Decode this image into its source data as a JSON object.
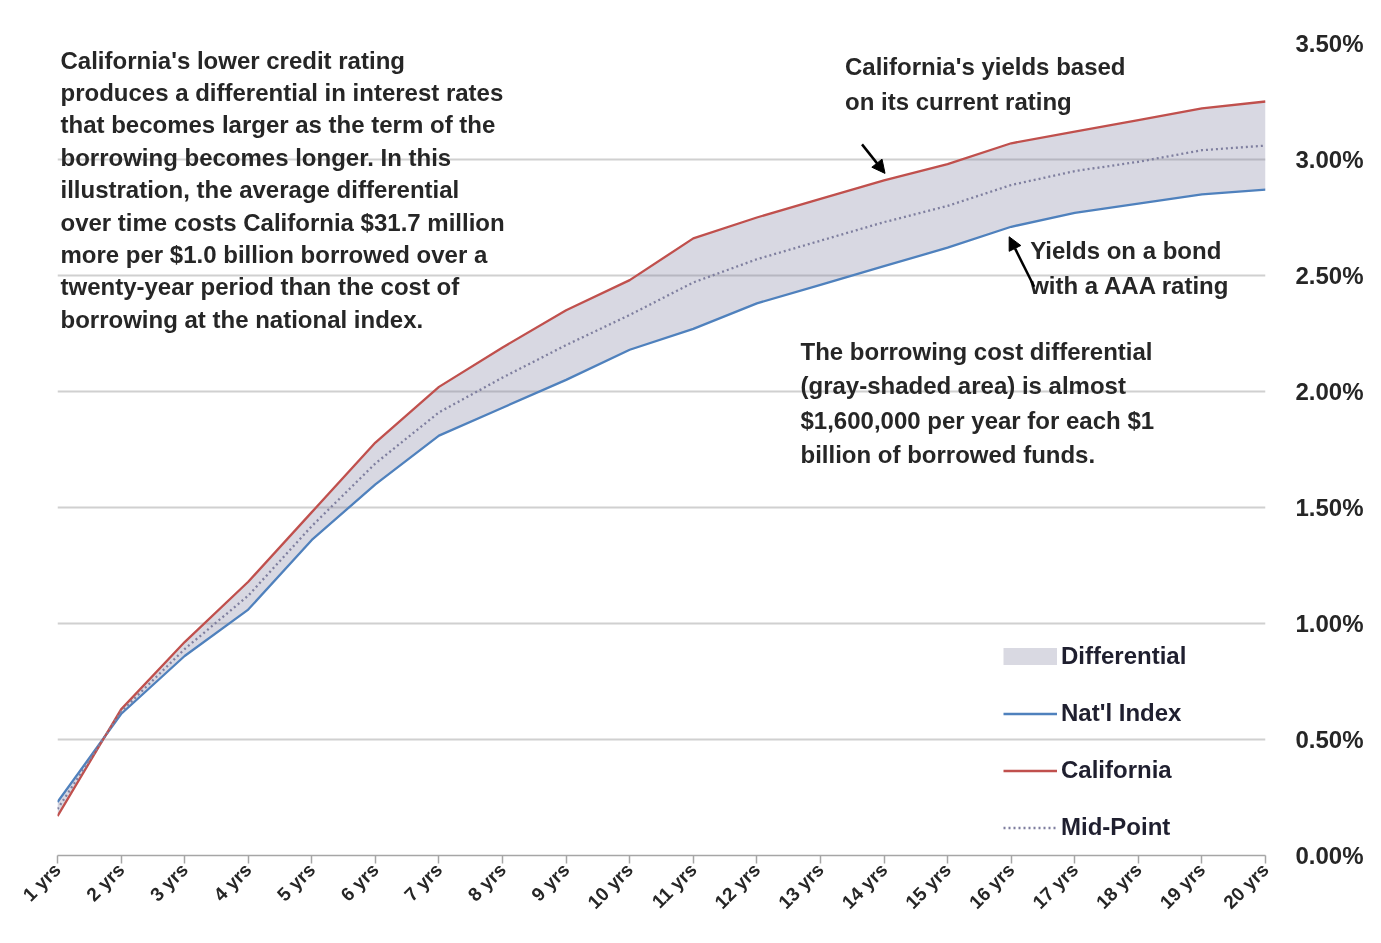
{
  "chart_data": {
    "type": "line",
    "categories": [
      "1 yrs",
      "2 yrs",
      "3 yrs",
      "4 yrs",
      "5 yrs",
      "6 yrs",
      "7 yrs",
      "8 yrs",
      "9 yrs",
      "10 yrs",
      "11 yrs",
      "12 yrs",
      "13 yrs",
      "14 yrs",
      "15 yrs",
      "16 yrs",
      "17 yrs",
      "18 yrs",
      "19 yrs",
      "20 yrs"
    ],
    "ylim": [
      0,
      3.5
    ],
    "yticks": [
      {
        "value": 0,
        "label": "0.00%"
      },
      {
        "value": 0.5,
        "label": "0.50%"
      },
      {
        "value": 1,
        "label": "1.00%"
      },
      {
        "value": 1.5,
        "label": "1.50%"
      },
      {
        "value": 2,
        "label": "2.00%"
      },
      {
        "value": 2.5,
        "label": "2.50%"
      },
      {
        "value": 3,
        "label": "3.00%"
      },
      {
        "value": 3.5,
        "label": "3.50%"
      }
    ],
    "grid": "y",
    "legend": "bottom right",
    "series": [
      {
        "name": "Nat'l Index",
        "color": "#4f81bd",
        "values": [
          0.23,
          0.61,
          0.86,
          1.06,
          1.36,
          1.6,
          1.81,
          1.93,
          2.05,
          2.18,
          2.27,
          2.38,
          2.46,
          2.54,
          2.62,
          2.71,
          2.77,
          2.81,
          2.85,
          2.87
        ]
      },
      {
        "name": "California",
        "color": "#c0504d",
        "values": [
          0.17,
          0.63,
          0.92,
          1.18,
          1.48,
          1.78,
          2.02,
          2.19,
          2.35,
          2.48,
          2.66,
          2.75,
          2.83,
          2.91,
          2.98,
          3.07,
          3.12,
          3.17,
          3.22,
          3.25
        ]
      },
      {
        "name": "Mid-Point",
        "color": "#7f7f9f",
        "line_style": "dotted",
        "values": [
          0.2,
          0.62,
          0.89,
          1.12,
          1.42,
          1.69,
          1.91,
          2.06,
          2.2,
          2.33,
          2.47,
          2.57,
          2.65,
          2.73,
          2.8,
          2.89,
          2.95,
          2.99,
          3.04,
          3.06
        ],
        "lower": [
          0.23,
          0.61,
          0.86,
          1.06,
          1.36,
          1.6,
          1.81,
          1.93,
          2.05,
          2.18,
          2.27,
          2.38,
          2.46,
          2.54,
          2.62,
          2.71,
          2.77,
          2.81,
          2.85,
          2.87
        ],
        "upper": [
          0.17,
          0.63,
          0.92,
          1.18,
          1.48,
          1.78,
          2.02,
          2.19,
          2.35,
          2.48,
          2.66,
          2.75,
          2.83,
          2.91,
          2.98,
          3.07,
          3.12,
          3.17,
          3.22,
          3.25
        ]
      }
    ],
    "annotations": [
      "California's lower credit rating\nproduces a differential in interest rates\nthat becomes larger as the term of the\nborrowing becomes longer. In this\nillustration, the average differential\nover time costs California $31.7 million\nmore per $1.0 billion borrowed over a\ntwenty-year period than the cost of\nborrowing at the national index.",
      {
        "text": "California's yields based\non its current rating",
        "x": "14 yrs",
        "y": 2.91
      },
      {
        "text": "Yields on a bond\nwith a AAA rating",
        "x": "16 yrs",
        "y": 2.71
      },
      "The borrowing cost differential\n(gray-shaded area) is almost\n$1,600,000 per year for each $1\nbillion of borrowed funds.",
      "Differential"
    ]
  }
}
